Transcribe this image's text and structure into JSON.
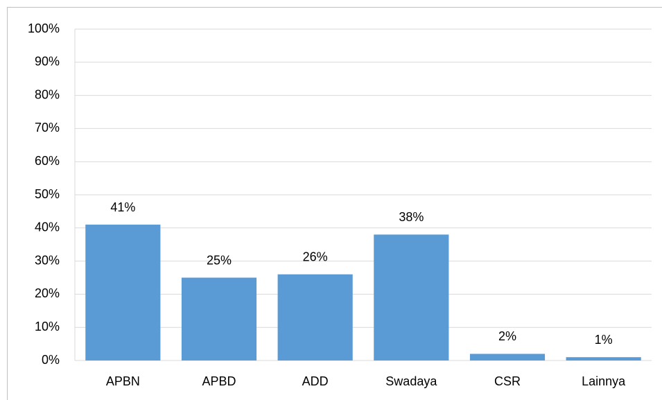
{
  "chart_data": {
    "type": "bar",
    "categories": [
      "APBN",
      "APBD",
      "ADD",
      "Swadaya",
      "CSR",
      "Lainnya"
    ],
    "values": [
      41,
      25,
      26,
      38,
      2,
      1
    ],
    "value_labels": [
      "41%",
      "25%",
      "26%",
      "38%",
      "2%",
      "1%"
    ],
    "color": "#5b9bd5",
    "ylim": [
      0,
      100
    ],
    "yticks": [
      {
        "value": 0,
        "label": "0%"
      },
      {
        "value": 10,
        "label": "10%"
      },
      {
        "value": 20,
        "label": "20%"
      },
      {
        "value": 30,
        "label": "30%"
      },
      {
        "value": 40,
        "label": "40%"
      },
      {
        "value": 50,
        "label": "50%"
      },
      {
        "value": 60,
        "label": "60%"
      },
      {
        "value": 70,
        "label": "70%"
      },
      {
        "value": 80,
        "label": "80%"
      },
      {
        "value": 90,
        "label": "90%"
      },
      {
        "value": 100,
        "label": "100%"
      }
    ],
    "grid": true
  }
}
